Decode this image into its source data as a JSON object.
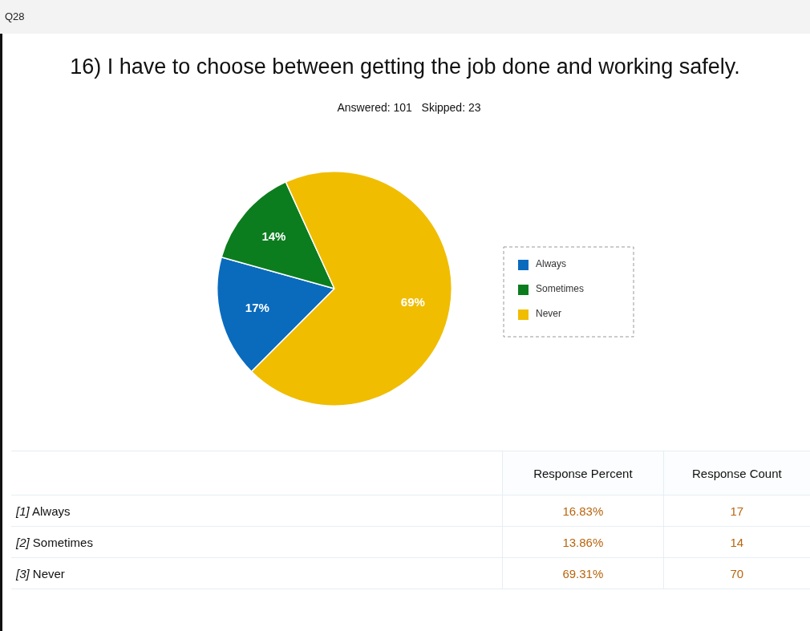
{
  "chart_data": {
    "type": "pie",
    "title": "16) I have to choose between getting the job done and working safely.",
    "subtitle": "Answered: 101   Skipped: 23",
    "categories": [
      "Always",
      "Sometimes",
      "Never"
    ],
    "values": [
      16.83,
      13.86,
      69.31
    ],
    "colors": [
      "#0a6bbd",
      "#0b7d1e",
      "#f0bd00"
    ],
    "value_labels": [
      "17%",
      "14%",
      "69%"
    ],
    "legend": "right",
    "annotations": [
      "Q28",
      "Response Percent",
      "Response Count",
      "[1] Always",
      "16.83%",
      "17",
      "[2] Sometimes",
      "13.86%",
      "14",
      "[3] Never",
      "69.31%",
      "70"
    ]
  }
}
